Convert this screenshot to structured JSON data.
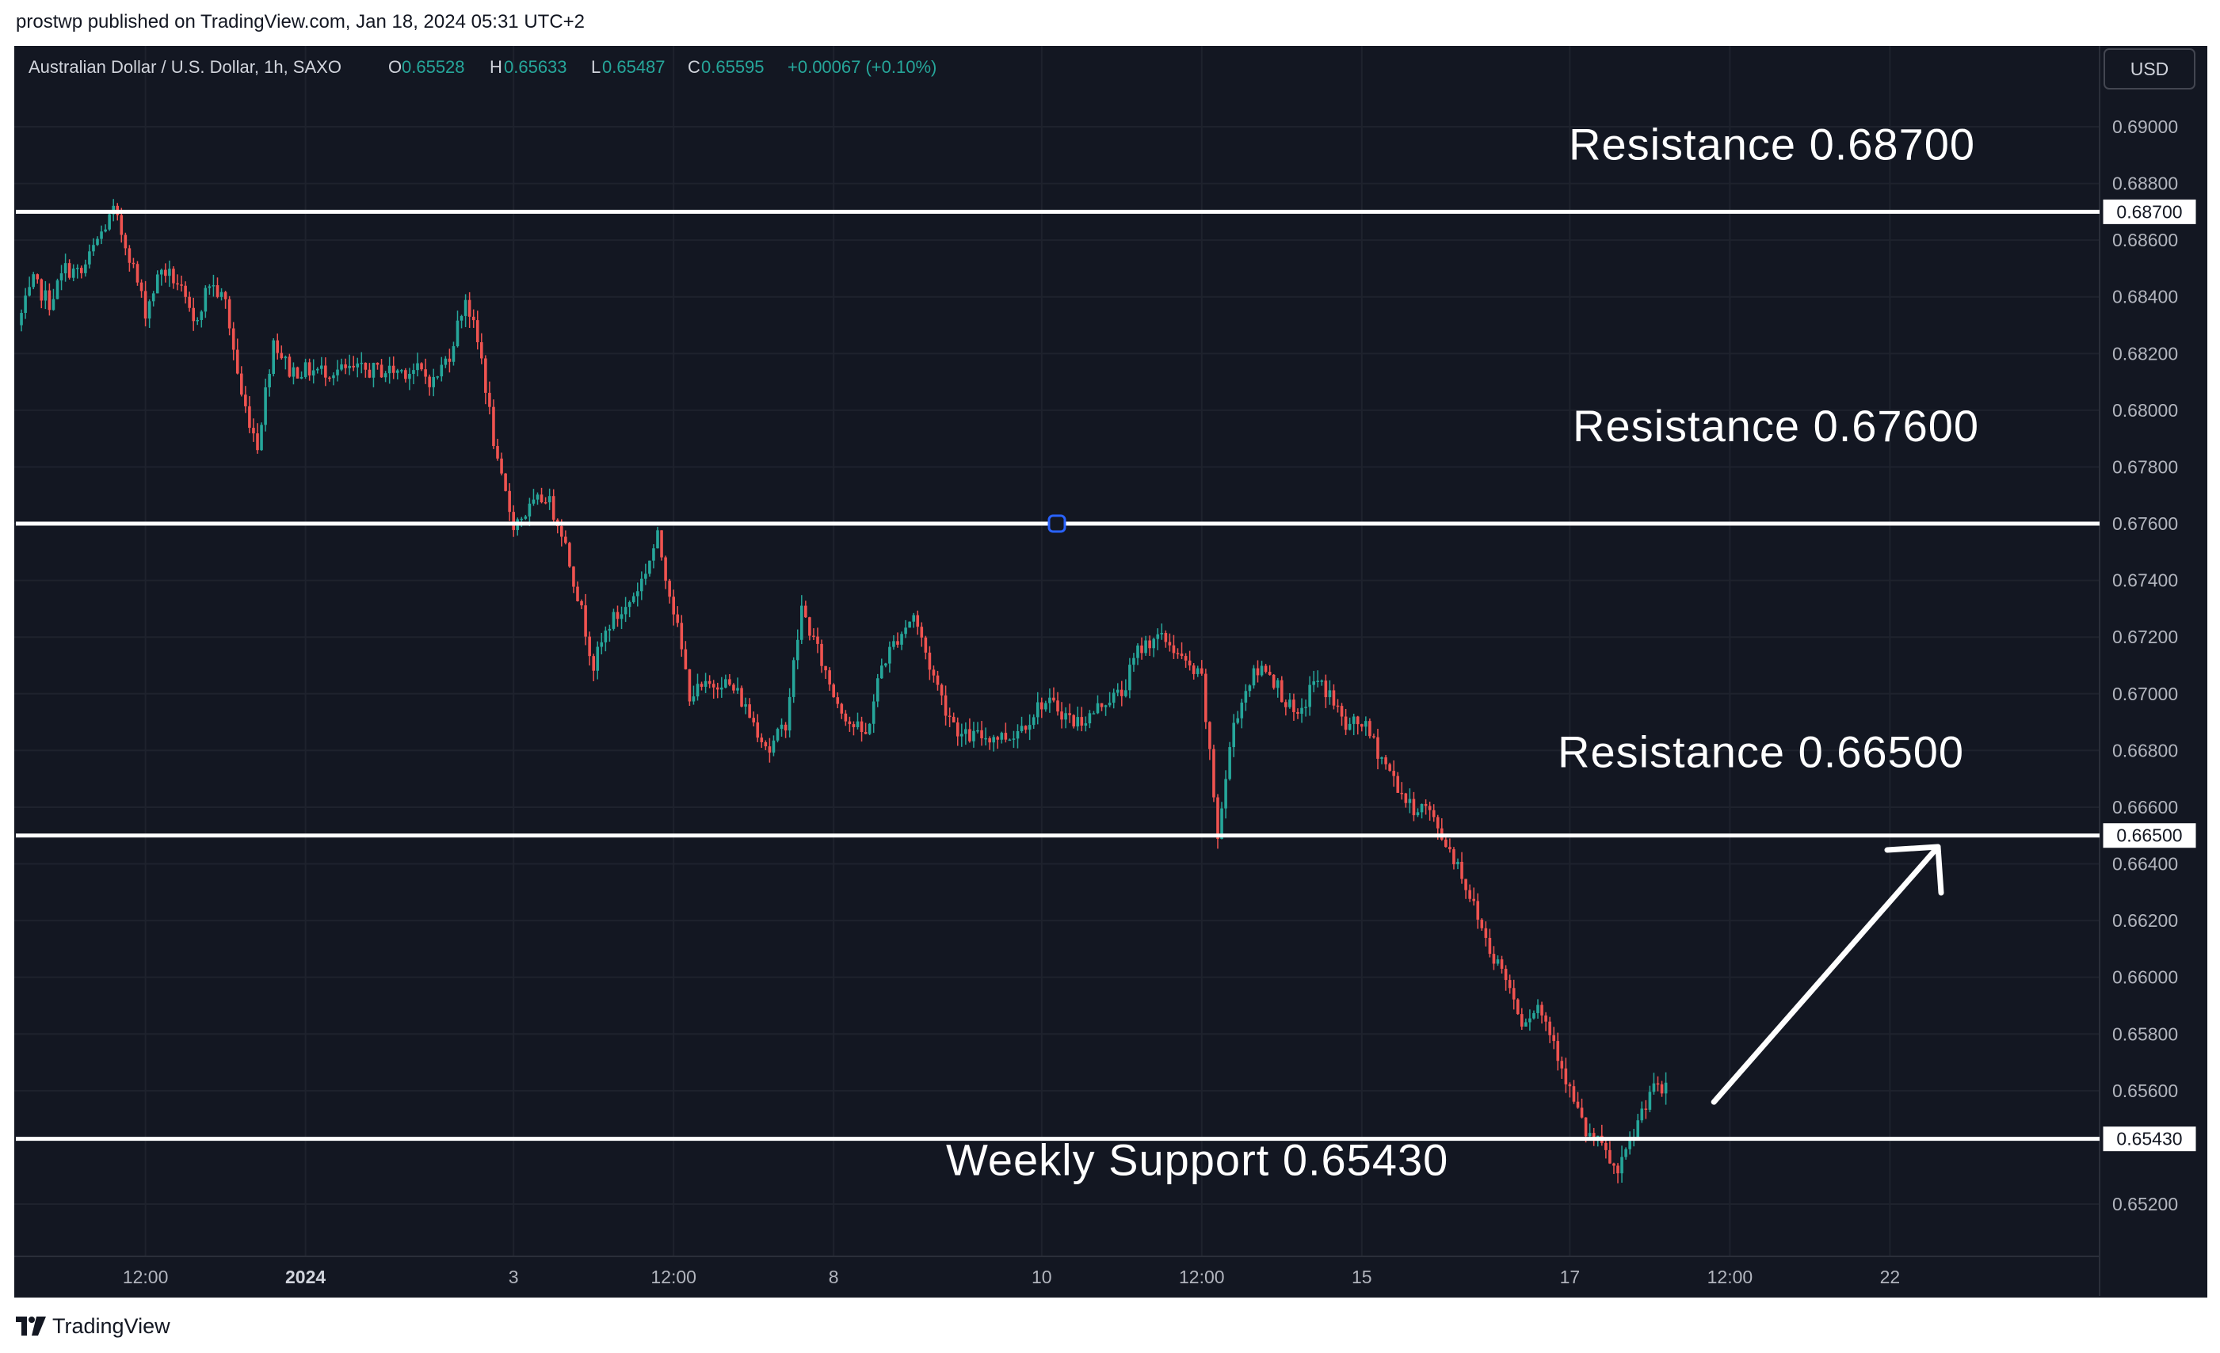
{
  "published": "prostwp published on TradingView.com, Jan 18, 2024 05:31 UTC+2",
  "symbol": {
    "name": "Australian Dollar / U.S. Dollar, 1h, SAXO",
    "o_label": "O",
    "o_value": "0.65528",
    "h_label": "H",
    "h_value": "0.65633",
    "l_label": "L",
    "l_value": "0.65487",
    "c_label": "C",
    "c_value": "0.65595",
    "change": "+0.00067 (+0.10%)"
  },
  "currency_button": "USD",
  "brand": "TradingView",
  "colors": {
    "background": "#131722",
    "up": "#26a69a",
    "down": "#ef5350",
    "level_line": "#ffffff",
    "annotation": "#ffffff"
  },
  "chart_data": {
    "type": "candlestick",
    "symbol": "AUDUSD",
    "timeframe": "1h",
    "ylim": [
      0.651,
      0.6912
    ],
    "y_ticks": [
      "0.69000",
      "0.68800",
      "0.68600",
      "0.68400",
      "0.68200",
      "0.68000",
      "0.67800",
      "0.67600",
      "0.67400",
      "0.67200",
      "0.67000",
      "0.66800",
      "0.66600",
      "0.66400",
      "0.66200",
      "0.66000",
      "0.65800",
      "0.65600",
      "0.65200"
    ],
    "x_ticks": [
      {
        "label": "12:00",
        "bold": false,
        "bar": 8
      },
      {
        "label": "2024",
        "bold": true,
        "bar": 18
      },
      {
        "label": "3",
        "bold": false,
        "bar": 31
      },
      {
        "label": "12:00",
        "bold": false,
        "bar": 41
      },
      {
        "label": "8",
        "bold": false,
        "bar": 51
      },
      {
        "label": "10",
        "bold": false,
        "bar": 64
      },
      {
        "label": "12:00",
        "bold": false,
        "bar": 74
      },
      {
        "label": "15",
        "bold": false,
        "bar": 84
      },
      {
        "label": "17",
        "bold": false,
        "bar": 97
      },
      {
        "label": "12:00",
        "bold": false,
        "bar": 107
      },
      {
        "label": "22",
        "bold": false,
        "bar": 117
      }
    ],
    "price_path": [
      [
        0,
        0.683
      ],
      [
        1,
        0.6845
      ],
      [
        2,
        0.6838
      ],
      [
        3,
        0.685
      ],
      [
        4,
        0.6848
      ],
      [
        5,
        0.686
      ],
      [
        6,
        0.687
      ],
      [
        7,
        0.6855
      ],
      [
        8,
        0.6835
      ],
      [
        9,
        0.685
      ],
      [
        10,
        0.6845
      ],
      [
        11,
        0.683
      ],
      [
        12,
        0.6845
      ],
      [
        13,
        0.6838
      ],
      [
        14,
        0.6805
      ],
      [
        15,
        0.6788
      ],
      [
        16,
        0.6825
      ],
      [
        17,
        0.6814
      ],
      [
        18,
        0.6814
      ],
      [
        22,
        0.6814
      ],
      [
        25,
        0.6814
      ],
      [
        26,
        0.681
      ],
      [
        27,
        0.682
      ],
      [
        28,
        0.684
      ],
      [
        29,
        0.6818
      ],
      [
        30,
        0.678
      ],
      [
        31,
        0.676
      ],
      [
        32,
        0.6765
      ],
      [
        33,
        0.677
      ],
      [
        34,
        0.6758
      ],
      [
        35,
        0.6735
      ],
      [
        36,
        0.671
      ],
      [
        37,
        0.6725
      ],
      [
        38,
        0.673
      ],
      [
        39,
        0.674
      ],
      [
        40,
        0.6755
      ],
      [
        41,
        0.673
      ],
      [
        42,
        0.67
      ],
      [
        43,
        0.6702
      ],
      [
        44,
        0.6705
      ],
      [
        45,
        0.67
      ],
      [
        46,
        0.669
      ],
      [
        47,
        0.668
      ],
      [
        48,
        0.669
      ],
      [
        49,
        0.673
      ],
      [
        50,
        0.6715
      ],
      [
        51,
        0.67
      ],
      [
        52,
        0.669
      ],
      [
        53,
        0.6685
      ],
      [
        54,
        0.671
      ],
      [
        55,
        0.672
      ],
      [
        56,
        0.6728
      ],
      [
        57,
        0.671
      ],
      [
        58,
        0.6695
      ],
      [
        59,
        0.6685
      ],
      [
        60,
        0.6685
      ],
      [
        61,
        0.6685
      ],
      [
        62,
        0.6685
      ],
      [
        63,
        0.669
      ],
      [
        64,
        0.6697
      ],
      [
        65,
        0.6695
      ],
      [
        66,
        0.669
      ],
      [
        67,
        0.6692
      ],
      [
        68,
        0.6698
      ],
      [
        69,
        0.67
      ],
      [
        70,
        0.6715
      ],
      [
        71,
        0.672
      ],
      [
        72,
        0.6718
      ],
      [
        73,
        0.671
      ],
      [
        74,
        0.6705
      ],
      [
        75,
        0.665
      ],
      [
        76,
        0.669
      ],
      [
        77,
        0.6705
      ],
      [
        78,
        0.671
      ],
      [
        79,
        0.67
      ],
      [
        80,
        0.669
      ],
      [
        81,
        0.6705
      ],
      [
        82,
        0.67
      ],
      [
        83,
        0.6688
      ],
      [
        84,
        0.669
      ],
      [
        85,
        0.668
      ],
      [
        86,
        0.667
      ],
      [
        87,
        0.666
      ],
      [
        88,
        0.666
      ],
      [
        89,
        0.665
      ],
      [
        90,
        0.664
      ],
      [
        91,
        0.6625
      ],
      [
        92,
        0.661
      ],
      [
        93,
        0.66
      ],
      [
        94,
        0.6585
      ],
      [
        95,
        0.659
      ],
      [
        96,
        0.6578
      ],
      [
        97,
        0.656
      ],
      [
        98,
        0.6545
      ],
      [
        99,
        0.654
      ],
      [
        100,
        0.653
      ],
      [
        101,
        0.6545
      ],
      [
        102,
        0.656
      ],
      [
        103,
        0.656
      ]
    ],
    "levels": [
      {
        "value": 0.687,
        "price_label": "0.68700",
        "annotation": "Resistance 0.68700"
      },
      {
        "value": 0.676,
        "price_label": "",
        "annotation": "Resistance 0.67600"
      },
      {
        "value": 0.665,
        "price_label": "0.66500",
        "annotation": "Resistance 0.66500"
      },
      {
        "value": 0.6543,
        "price_label": "0.65430",
        "annotation": "Weekly Support 0.65430"
      }
    ],
    "arrow": {
      "from_bar": 106,
      "from_price": 0.6556,
      "to_bar": 120,
      "to_price": 0.6646
    }
  }
}
